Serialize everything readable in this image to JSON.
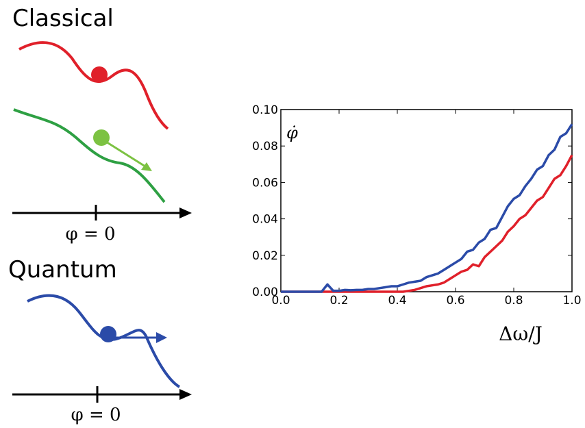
{
  "diagram": {
    "classical": "Classical",
    "quantum": "Quantum",
    "axis_label_top": "φ = 0",
    "axis_label_bottom": "φ = 0"
  },
  "chart_data": {
    "type": "line",
    "x_label": "Δω/J",
    "y_label": "φ̇",
    "x": [
      0,
      0.02,
      0.04,
      0.06,
      0.08,
      0.1,
      0.12,
      0.14,
      0.16,
      0.18,
      0.2,
      0.22,
      0.24,
      0.26,
      0.28,
      0.3,
      0.32,
      0.34,
      0.36,
      0.38,
      0.4,
      0.42,
      0.44,
      0.46,
      0.48,
      0.5,
      0.52,
      0.54,
      0.56,
      0.58,
      0.6,
      0.62,
      0.64,
      0.66,
      0.68,
      0.7,
      0.72,
      0.74,
      0.76,
      0.78,
      0.8,
      0.82,
      0.84,
      0.86,
      0.88,
      0.9,
      0.92,
      0.94,
      0.96,
      0.98,
      1.0
    ],
    "series": [
      {
        "color": "#2b4ba8",
        "values": [
          0,
          0,
          0,
          0,
          0,
          0,
          0,
          0,
          0.004,
          0.0005,
          0.0005,
          0.001,
          0.0008,
          0.001,
          0.001,
          0.0015,
          0.0015,
          0.002,
          0.0025,
          0.003,
          0.003,
          0.004,
          0.005,
          0.0055,
          0.006,
          0.008,
          0.009,
          0.01,
          0.012,
          0.014,
          0.016,
          0.018,
          0.022,
          0.023,
          0.027,
          0.029,
          0.034,
          0.035,
          0.041,
          0.047,
          0.051,
          0.053,
          0.058,
          0.062,
          0.067,
          0.069,
          0.075,
          0.078,
          0.085,
          0.087,
          0.092
        ]
      },
      {
        "color": "#e0202a",
        "values": [
          0,
          0,
          0,
          0,
          0,
          0,
          0,
          0,
          0,
          0,
          0,
          0,
          0,
          0,
          0,
          0,
          0,
          0,
          0,
          0,
          0,
          0,
          0.0005,
          0.001,
          0.002,
          0.003,
          0.0035,
          0.004,
          0.005,
          0.007,
          0.009,
          0.011,
          0.012,
          0.015,
          0.014,
          0.019,
          0.022,
          0.025,
          0.028,
          0.033,
          0.036,
          0.04,
          0.042,
          0.046,
          0.05,
          0.052,
          0.057,
          0.062,
          0.064,
          0.069,
          0.075
        ]
      }
    ],
    "xlim": [
      0,
      1
    ],
    "ylim": [
      0,
      0.1
    ],
    "xticks": [
      {
        "value": 0,
        "label": "0.0"
      },
      0.2,
      0.4,
      0.6,
      0.8,
      {
        "value": 1,
        "label": "1.0"
      }
    ],
    "yticks": [
      {
        "value": 0,
        "label": "0.00"
      },
      0.02,
      0.04,
      0.06,
      0.08,
      {
        "value": 0.1,
        "label": "0.10"
      }
    ]
  }
}
